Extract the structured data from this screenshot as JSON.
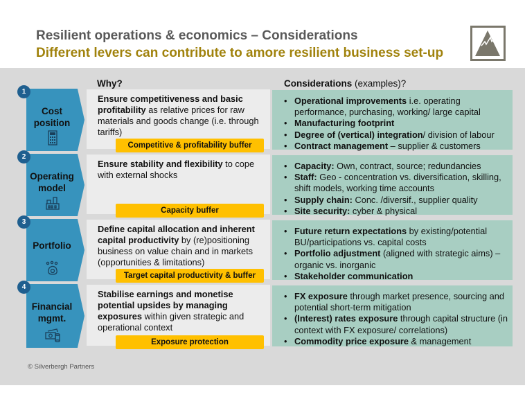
{
  "header": {
    "title": "Resilient operations & economics – Considerations",
    "subtitle": "Different levers can contribute to amore resilient business set-up",
    "logo_icon": "mountain-logo-icon"
  },
  "columns": {
    "why": "Why?",
    "considerations_bold": "Considerations",
    "considerations_rest": " (examples)?"
  },
  "colors": {
    "chevron": "#3793bd",
    "number_badge": "#1f5f8f",
    "considerations_bg": "#a8cec2",
    "tag": "#ffc000",
    "subtitle": "#a0820c"
  },
  "rows": [
    {
      "number": "1",
      "label": "Cost position",
      "icon": "calculator-icon",
      "why": [
        {
          "b": true,
          "t": "Ensure competitiveness and basic profitability"
        },
        {
          "b": false,
          "t": " as relative prices for raw materials and goods change (i.e. through tariffs)"
        }
      ],
      "tag": "Competitive & profitability buffer",
      "considerations": [
        [
          {
            "b": true,
            "t": "Operational improvements"
          },
          {
            "b": false,
            "t": " i.e. operating performance, purchasing, working/ large capital"
          }
        ],
        [
          {
            "b": true,
            "t": "Manufacturing footprint"
          }
        ],
        [
          {
            "b": true,
            "t": "Degree of (vertical) integration"
          },
          {
            "b": false,
            "t": "/ division of labour"
          }
        ],
        [
          {
            "b": true,
            "t": "Contract management"
          },
          {
            "b": false,
            "t": " – supplier & customers"
          }
        ]
      ]
    },
    {
      "number": "2",
      "label": "Operating model",
      "icon": "factory-icon",
      "why": [
        {
          "b": true,
          "t": "Ensure stability and flexibility"
        },
        {
          "b": false,
          "t": " to cope with external shocks"
        }
      ],
      "tag": "Capacity buffer",
      "considerations": [
        [
          {
            "b": true,
            "t": "Capacity:"
          },
          {
            "b": false,
            "t": " Own, contract, source; redundancies"
          }
        ],
        [
          {
            "b": true,
            "t": "Staff:"
          },
          {
            "b": false,
            "t": " Geo - concentration vs. diversification, skilling, shift models, working time accounts"
          }
        ],
        [
          {
            "b": true,
            "t": "Supply chain:"
          },
          {
            "b": false,
            "t": " Conc. /diversif., supplier quality"
          }
        ],
        [
          {
            "b": true,
            "t": "Site security:"
          },
          {
            "b": false,
            "t": " cyber & physical"
          }
        ]
      ]
    },
    {
      "number": "3",
      "label": "Portfolio",
      "icon": "money-bag-icon",
      "why": [
        {
          "b": true,
          "t": "Define capital allocation and inherent capital productivity"
        },
        {
          "b": false,
          "t": " by (re)positioning business on value chain and in markets (opportunities & limitations)"
        }
      ],
      "tag": "Target capital productivity & buffer",
      "considerations": [
        [
          {
            "b": true,
            "t": "Future return expectations"
          },
          {
            "b": false,
            "t": " by existing/potential BU/participations vs. capital costs"
          }
        ],
        [
          {
            "b": true,
            "t": "Portfolio adjustment"
          },
          {
            "b": false,
            "t": " (aligned with strategic aims) – organic vs. inorganic"
          }
        ],
        [
          {
            "b": true,
            "t": "Stakeholder communication"
          }
        ]
      ]
    },
    {
      "number": "4",
      "label": "Financial mgmt.",
      "icon": "cash-coins-icon",
      "why": [
        {
          "b": true,
          "t": "Stabilise earnings and monetise potential upsides by managing exposures"
        },
        {
          "b": false,
          "t": " within given strategic and operational context"
        }
      ],
      "tag": "Exposure protection",
      "considerations": [
        [
          {
            "b": true,
            "t": "FX exposure"
          },
          {
            "b": false,
            "t": " through market presence, sourcing and potential short-term mitigation"
          }
        ],
        [
          {
            "b": true,
            "t": "(Interest) rates exposure"
          },
          {
            "b": false,
            "t": " through capital structure (in context with FX exposure/ correlations)"
          }
        ],
        [
          {
            "b": true,
            "t": "Commodity price exposure"
          },
          {
            "b": false,
            "t": " & management"
          }
        ]
      ]
    }
  ],
  "footer": {
    "copyright": "© Silverbergh Partners"
  }
}
